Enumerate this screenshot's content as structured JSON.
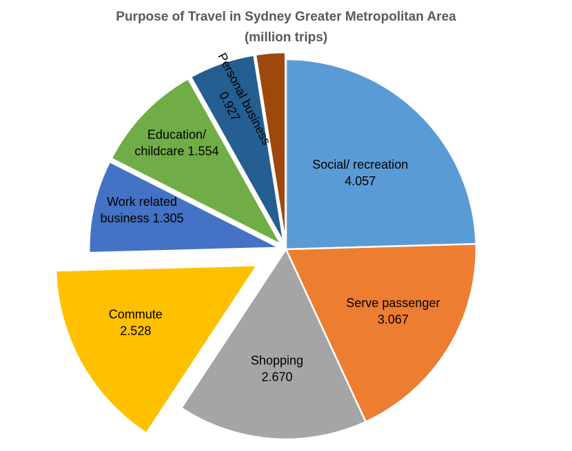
{
  "chart_data": {
    "type": "pie",
    "title": "Purpose of Travel in Sydney Greater Metropolitan Area",
    "subtitle": "(million trips)",
    "slices": [
      {
        "label_lines": [
          "Social/ recreation",
          "4.057"
        ],
        "name": "Social/ recreation",
        "value": 4.057,
        "color": "#5B9BD5",
        "exploded": false
      },
      {
        "label_lines": [
          "Serve passenger",
          "3.067"
        ],
        "name": "Serve passenger",
        "value": 3.067,
        "color": "#ED7D31",
        "exploded": false
      },
      {
        "label_lines": [
          "Shopping",
          "2.670"
        ],
        "name": "Shopping",
        "value": 2.67,
        "color": "#A5A5A5",
        "exploded": false
      },
      {
        "label_lines": [
          "Commute",
          "2.528"
        ],
        "name": "Commute",
        "value": 2.528,
        "color": "#FFC000",
        "exploded": true
      },
      {
        "label_lines": [
          "Work related",
          "business 1.305"
        ],
        "name": "Work related business",
        "value": 1.305,
        "color": "#4472C4",
        "exploded": true
      },
      {
        "label_lines": [
          "Education/",
          "childcare 1.554"
        ],
        "name": "Education/ childcare",
        "value": 1.554,
        "color": "#70AD47",
        "exploded": true
      },
      {
        "label_lines": [
          "Personal business",
          "0.927"
        ],
        "name": "Personal business",
        "value": 0.927,
        "color": "#255E91",
        "exploded": true
      },
      {
        "label_lines": [],
        "name": "",
        "value": 0.415,
        "color": "#9E480E",
        "exploded": true
      }
    ]
  }
}
